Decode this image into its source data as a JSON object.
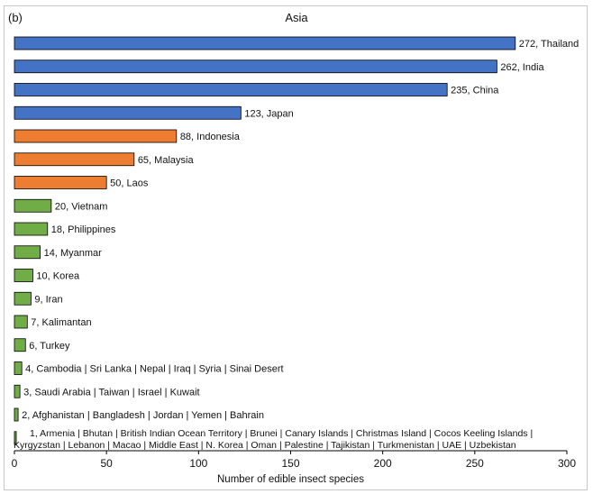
{
  "panel_label": "(b)",
  "chart_data": {
    "type": "bar",
    "orientation": "horizontal",
    "title": "Asia",
    "xlabel": "Number of edible insect species",
    "ylabel": "",
    "xlim": [
      0,
      300
    ],
    "xticks": [
      0,
      50,
      100,
      150,
      200,
      250,
      300
    ],
    "grid": false,
    "bars": [
      {
        "label": "272, Thailand",
        "value": 272,
        "color": "#4472c4"
      },
      {
        "label": "262, India",
        "value": 262,
        "color": "#4472c4"
      },
      {
        "label": "235, China",
        "value": 235,
        "color": "#4472c4"
      },
      {
        "label": "123, Japan",
        "value": 123,
        "color": "#4472c4"
      },
      {
        "label": "88, Indonesia",
        "value": 88,
        "color": "#ed7d31"
      },
      {
        "label": "65, Malaysia",
        "value": 65,
        "color": "#ed7d31"
      },
      {
        "label": "50, Laos",
        "value": 50,
        "color": "#ed7d31"
      },
      {
        "label": "20, Vietnam",
        "value": 20,
        "color": "#70ad47"
      },
      {
        "label": "18, Philippines",
        "value": 18,
        "color": "#70ad47"
      },
      {
        "label": "14, Myanmar",
        "value": 14,
        "color": "#70ad47"
      },
      {
        "label": "10, Korea",
        "value": 10,
        "color": "#70ad47"
      },
      {
        "label": "9, Iran",
        "value": 9,
        "color": "#70ad47"
      },
      {
        "label": "7, Kalimantan",
        "value": 7,
        "color": "#70ad47"
      },
      {
        "label": "6, Turkey",
        "value": 6,
        "color": "#70ad47"
      },
      {
        "label": "4, Cambodia | Sri Lanka | Nepal | Iraq | Syria | Sinai Desert",
        "value": 4,
        "color": "#70ad47"
      },
      {
        "label": "3, Saudi Arabia | Taiwan | Israel | Kuwait",
        "value": 3,
        "color": "#70ad47"
      },
      {
        "label": "2, Afghanistan | Bangladesh | Jordan | Yemen | Bahrain",
        "value": 2,
        "color": "#70ad47"
      },
      {
        "label": "1, Armenia | Bhutan | British Indian Ocean Territory | Brunei | Canary Islands | Christmas Island | Cocos Keeling Islands |",
        "label_line2": "Kyrgyzstan | Lebanon | Macao | Middle East | N. Korea | Oman | Palestine | Tajikistan | Turkmenistan | UAE | Uzbekistan",
        "value": 1,
        "color": "#70ad47"
      }
    ]
  }
}
